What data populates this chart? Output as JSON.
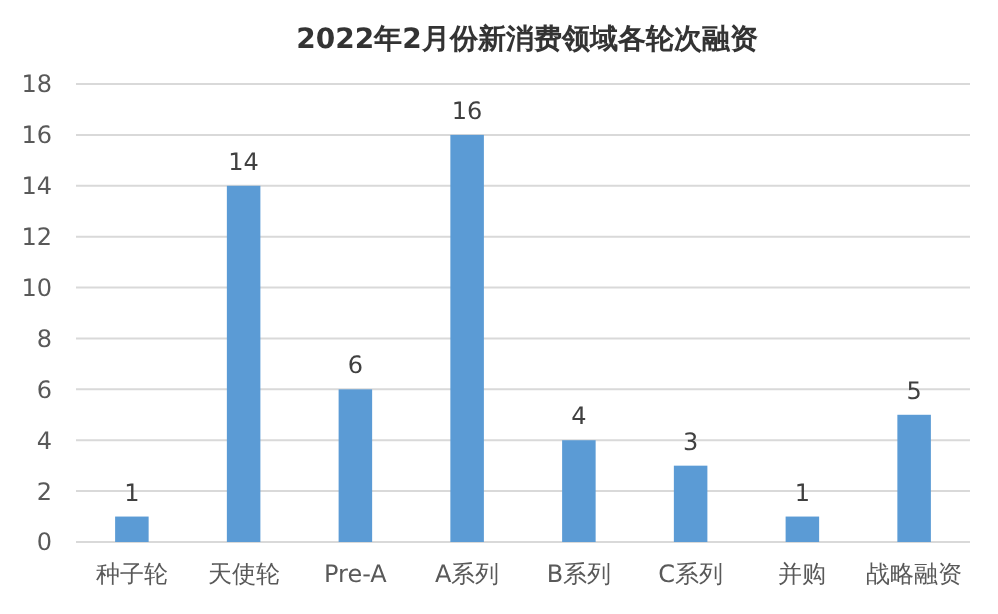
{
  "chart_data": {
    "type": "bar",
    "title": "2022年2月份新消费领域各轮次融资",
    "categories": [
      "种子轮",
      "天使轮",
      "Pre-A",
      "A系列",
      "B系列",
      "C系列",
      "并购",
      "战略融资"
    ],
    "values": [
      1,
      14,
      6,
      16,
      4,
      3,
      1,
      5
    ],
    "color": "#5b9bd5",
    "ylim": [
      0,
      18
    ],
    "yticks": [
      0,
      2,
      4,
      6,
      8,
      10,
      12,
      14,
      16,
      18
    ],
    "grid": "y",
    "data_labels": true
  }
}
